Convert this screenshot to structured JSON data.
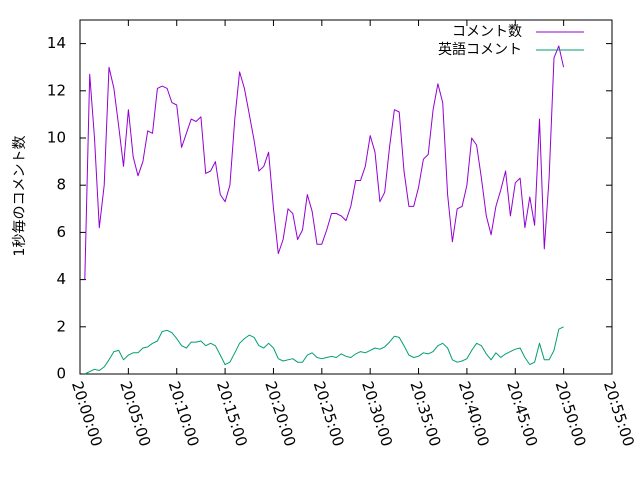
{
  "chart_data": {
    "type": "line",
    "title": "",
    "xlabel": "",
    "ylabel": "1秒毎のコメント数",
    "xlim": [
      "20:00:00",
      "20:55:00"
    ],
    "ylim": [
      0,
      15
    ],
    "x_ticks": [
      "20:00:00",
      "20:05:00",
      "20:10:00",
      "20:15:00",
      "20:20:00",
      "20:25:00",
      "20:30:00",
      "20:35:00",
      "20:40:00",
      "20:45:00",
      "20:50:00",
      "20:55:00"
    ],
    "y_ticks": [
      0,
      2,
      4,
      6,
      8,
      10,
      12,
      14
    ],
    "grid": false,
    "legend_position": "top-right",
    "x_interval_seconds": 30,
    "x_start": "20:00:00",
    "series": [
      {
        "name": "コメント数",
        "color": "#9400d3",
        "values": [
          4.0,
          12.7,
          10.0,
          6.2,
          8.0,
          13.0,
          12.1,
          10.5,
          8.8,
          11.2,
          9.2,
          8.4,
          9.0,
          10.3,
          10.2,
          12.1,
          12.2,
          12.1,
          11.5,
          11.4,
          9.6,
          10.2,
          10.8,
          10.7,
          10.9,
          8.5,
          8.6,
          9.0,
          7.6,
          7.3,
          8.0,
          10.8,
          12.8,
          12.1,
          11.0,
          9.9,
          8.6,
          8.8,
          9.4,
          7.0,
          5.1,
          5.7,
          7.0,
          6.8,
          5.7,
          6.1,
          7.6,
          6.9,
          5.5,
          5.5,
          6.1,
          6.8,
          6.8,
          6.7,
          6.5,
          7.1,
          8.2,
          8.2,
          8.8,
          10.1,
          9.4,
          7.3,
          7.7,
          9.6,
          11.2,
          11.1,
          8.6,
          7.1,
          7.1,
          7.9,
          9.1,
          9.3,
          11.2,
          12.3,
          11.5,
          7.6,
          5.6,
          7.0,
          7.1,
          8.0,
          10.0,
          9.7,
          8.3,
          6.7,
          5.9,
          7.1,
          7.8,
          8.6,
          6.7,
          8.1,
          8.3,
          6.2,
          7.5,
          6.3,
          10.8,
          5.3,
          8.3,
          13.4,
          13.9,
          13.0
        ]
      },
      {
        "name": "英語コメント",
        "color": "#009e73",
        "values": [
          0.0,
          0.1,
          0.2,
          0.15,
          0.3,
          0.6,
          0.95,
          1.0,
          0.6,
          0.8,
          0.9,
          0.9,
          1.1,
          1.15,
          1.3,
          1.4,
          1.8,
          1.85,
          1.75,
          1.5,
          1.2,
          1.1,
          1.35,
          1.35,
          1.4,
          1.2,
          1.3,
          1.2,
          0.8,
          0.4,
          0.5,
          0.9,
          1.3,
          1.5,
          1.65,
          1.55,
          1.2,
          1.1,
          1.3,
          1.1,
          0.65,
          0.55,
          0.6,
          0.65,
          0.5,
          0.5,
          0.8,
          0.9,
          0.7,
          0.65,
          0.7,
          0.75,
          0.7,
          0.85,
          0.75,
          0.7,
          0.85,
          0.95,
          0.9,
          1.0,
          1.1,
          1.05,
          1.15,
          1.35,
          1.6,
          1.55,
          1.2,
          0.8,
          0.7,
          0.75,
          0.9,
          0.85,
          0.95,
          1.2,
          1.3,
          1.1,
          0.6,
          0.5,
          0.55,
          0.65,
          1.0,
          1.3,
          1.2,
          0.85,
          0.6,
          0.9,
          0.7,
          0.85,
          0.95,
          1.05,
          1.1,
          0.7,
          0.4,
          0.5,
          1.3,
          0.6,
          0.6,
          1.0,
          1.9,
          2.0
        ]
      }
    ]
  }
}
